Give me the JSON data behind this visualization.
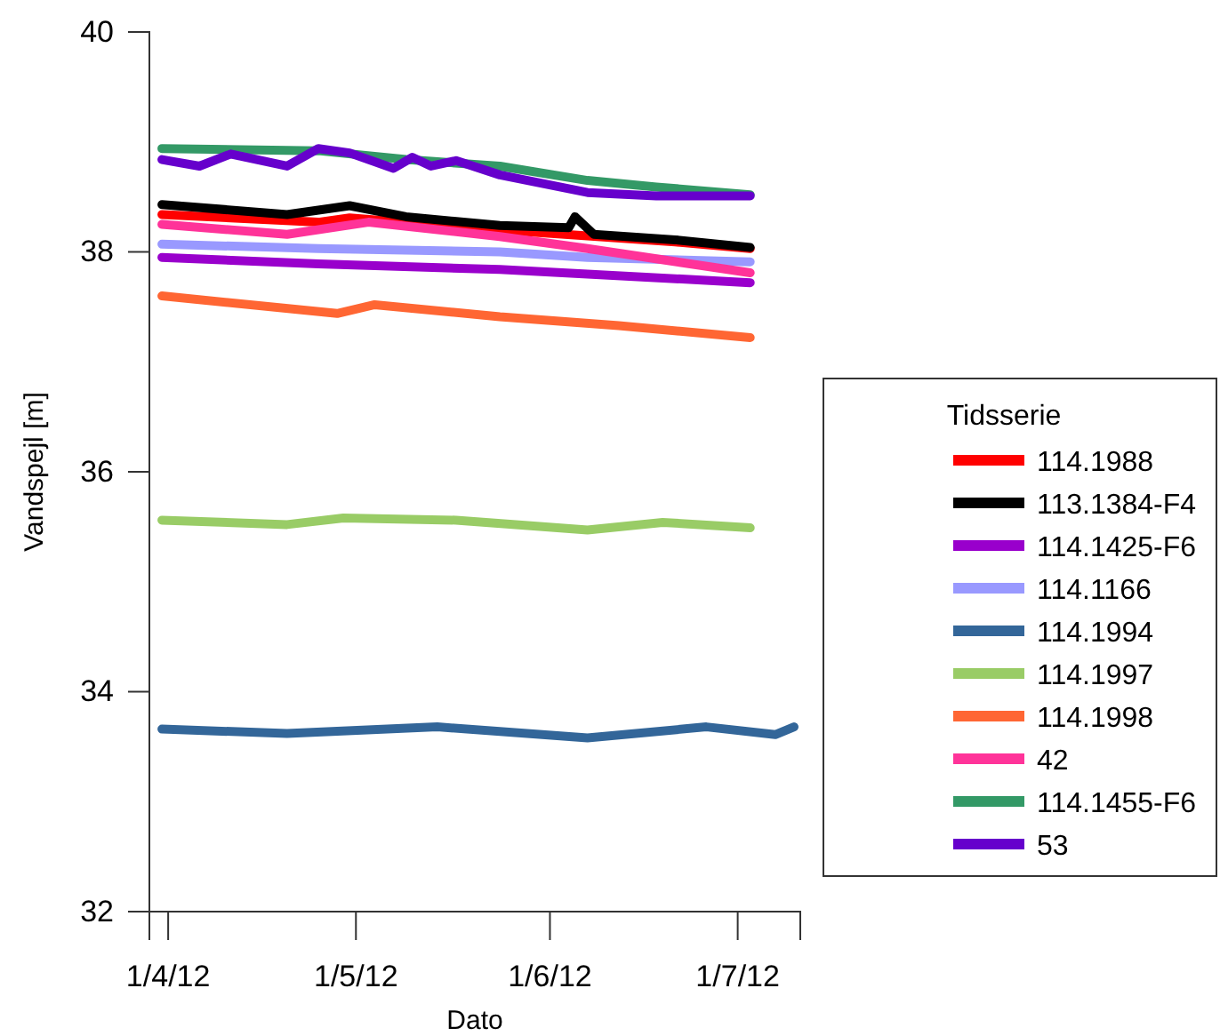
{
  "chart_data": {
    "type": "line",
    "xlabel": "Dato",
    "ylabel": "Vandspejl [m]",
    "legend_title": "Tidsserie",
    "legend": "right",
    "grid": false,
    "line_style": "solid",
    "marker": "none",
    "xlim": [
      "2012-03-29",
      "2012-07-11"
    ],
    "xticks": [
      {
        "value": "2012-04-01",
        "label": "1/4/12"
      },
      {
        "value": "2012-05-01",
        "label": "1/5/12"
      },
      {
        "value": "2012-06-01",
        "label": "1/6/12"
      },
      {
        "value": "2012-07-01",
        "label": "1/7/12"
      }
    ],
    "ylim": [
      32,
      40
    ],
    "yticks": [
      32,
      34,
      36,
      38,
      40
    ],
    "series": [
      {
        "name": "114.1988",
        "color": "#ff0000",
        "x": [
          "2012-03-31",
          "2012-04-25",
          "2012-04-30",
          "2012-05-24",
          "2012-06-21",
          "2012-07-03"
        ],
        "values": [
          38.34,
          38.27,
          38.31,
          38.2,
          38.09,
          38.03
        ]
      },
      {
        "name": "113.1384-F4",
        "color": "#000000",
        "x": [
          "2012-03-31",
          "2012-04-20",
          "2012-04-30",
          "2012-05-09",
          "2012-05-24",
          "2012-06-04",
          "2012-06-05",
          "2012-06-08",
          "2012-06-21",
          "2012-07-03"
        ],
        "values": [
          38.43,
          38.34,
          38.42,
          38.32,
          38.24,
          38.22,
          38.32,
          38.16,
          38.11,
          38.04
        ]
      },
      {
        "name": "114.1425-F6",
        "color": "#9900cc",
        "x": [
          "2012-03-31",
          "2012-04-25",
          "2012-05-24",
          "2012-07-03"
        ],
        "values": [
          37.95,
          37.89,
          37.84,
          37.72
        ]
      },
      {
        "name": "114.1166",
        "color": "#9999ff",
        "x": [
          "2012-03-31",
          "2012-04-25",
          "2012-05-24",
          "2012-06-07",
          "2012-07-03"
        ],
        "values": [
          38.07,
          38.03,
          38.0,
          37.95,
          37.91
        ]
      },
      {
        "name": "114.1994",
        "color": "#336699",
        "x": [
          "2012-03-31",
          "2012-04-20",
          "2012-05-14",
          "2012-06-07",
          "2012-06-26",
          "2012-07-07",
          "2012-07-10"
        ],
        "values": [
          33.66,
          33.62,
          33.68,
          33.58,
          33.68,
          33.61,
          33.68
        ]
      },
      {
        "name": "114.1997",
        "color": "#99cc66",
        "x": [
          "2012-03-31",
          "2012-04-20",
          "2012-04-29",
          "2012-05-17",
          "2012-06-07",
          "2012-06-19",
          "2012-07-03"
        ],
        "values": [
          35.56,
          35.52,
          35.58,
          35.56,
          35.47,
          35.54,
          35.49
        ]
      },
      {
        "name": "114.1998",
        "color": "#ff6633",
        "x": [
          "2012-03-31",
          "2012-04-28",
          "2012-05-04",
          "2012-05-24",
          "2012-06-12",
          "2012-07-03"
        ],
        "values": [
          37.6,
          37.44,
          37.52,
          37.41,
          37.33,
          37.22
        ]
      },
      {
        "name": "42",
        "color": "#ff3399",
        "x": [
          "2012-03-31",
          "2012-04-20",
          "2012-05-03",
          "2012-05-24",
          "2012-06-07",
          "2012-07-03"
        ],
        "values": [
          38.25,
          38.16,
          38.27,
          38.14,
          38.03,
          37.81
        ]
      },
      {
        "name": "114.1455-F6",
        "color": "#339966",
        "x": [
          "2012-03-31",
          "2012-04-25",
          "2012-05-09",
          "2012-05-24",
          "2012-06-07",
          "2012-06-18",
          "2012-07-03"
        ],
        "values": [
          38.94,
          38.92,
          38.84,
          38.78,
          38.65,
          38.59,
          38.52
        ]
      },
      {
        "name": "53",
        "color": "#6600cc",
        "x": [
          "2012-03-31",
          "2012-04-06",
          "2012-04-11",
          "2012-04-20",
          "2012-04-25",
          "2012-04-30",
          "2012-05-07",
          "2012-05-10",
          "2012-05-13",
          "2012-05-17",
          "2012-05-24",
          "2012-06-07",
          "2012-06-18",
          "2012-07-03"
        ],
        "values": [
          38.84,
          38.78,
          38.89,
          38.78,
          38.94,
          38.9,
          38.76,
          38.86,
          38.78,
          38.83,
          38.7,
          38.54,
          38.51,
          38.51
        ]
      }
    ]
  }
}
